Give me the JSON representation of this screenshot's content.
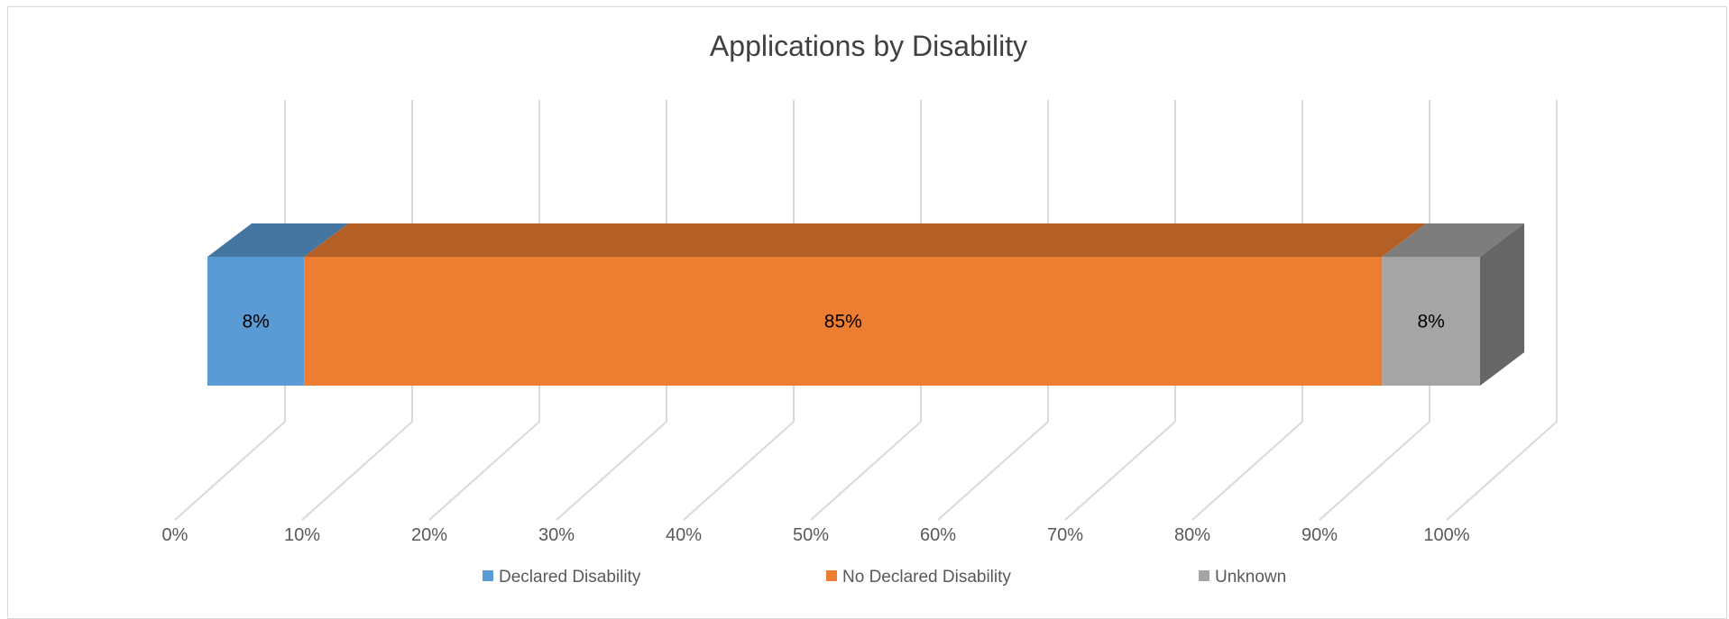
{
  "chart_data": {
    "type": "bar",
    "orientation": "horizontal",
    "stacked": "100%",
    "3d": true,
    "title": "Applications by Disability",
    "xlabel": "",
    "ylabel": "",
    "xlim": [
      0,
      100
    ],
    "x_ticks": [
      "0%",
      "10%",
      "20%",
      "30%",
      "40%",
      "50%",
      "60%",
      "70%",
      "80%",
      "90%",
      "100%"
    ],
    "grid": true,
    "legend_position": "bottom",
    "series": [
      {
        "name": "Declared Disability",
        "values": [
          7.6
        ],
        "label": "8%",
        "color": "#5B9BD5"
      },
      {
        "name": "No Declared Disability",
        "values": [
          84.7
        ],
        "label": "85%",
        "color": "#ED7D31"
      },
      {
        "name": "Unknown",
        "values": [
          7.7
        ],
        "label": "8%",
        "color": "#A5A5A5"
      }
    ]
  }
}
